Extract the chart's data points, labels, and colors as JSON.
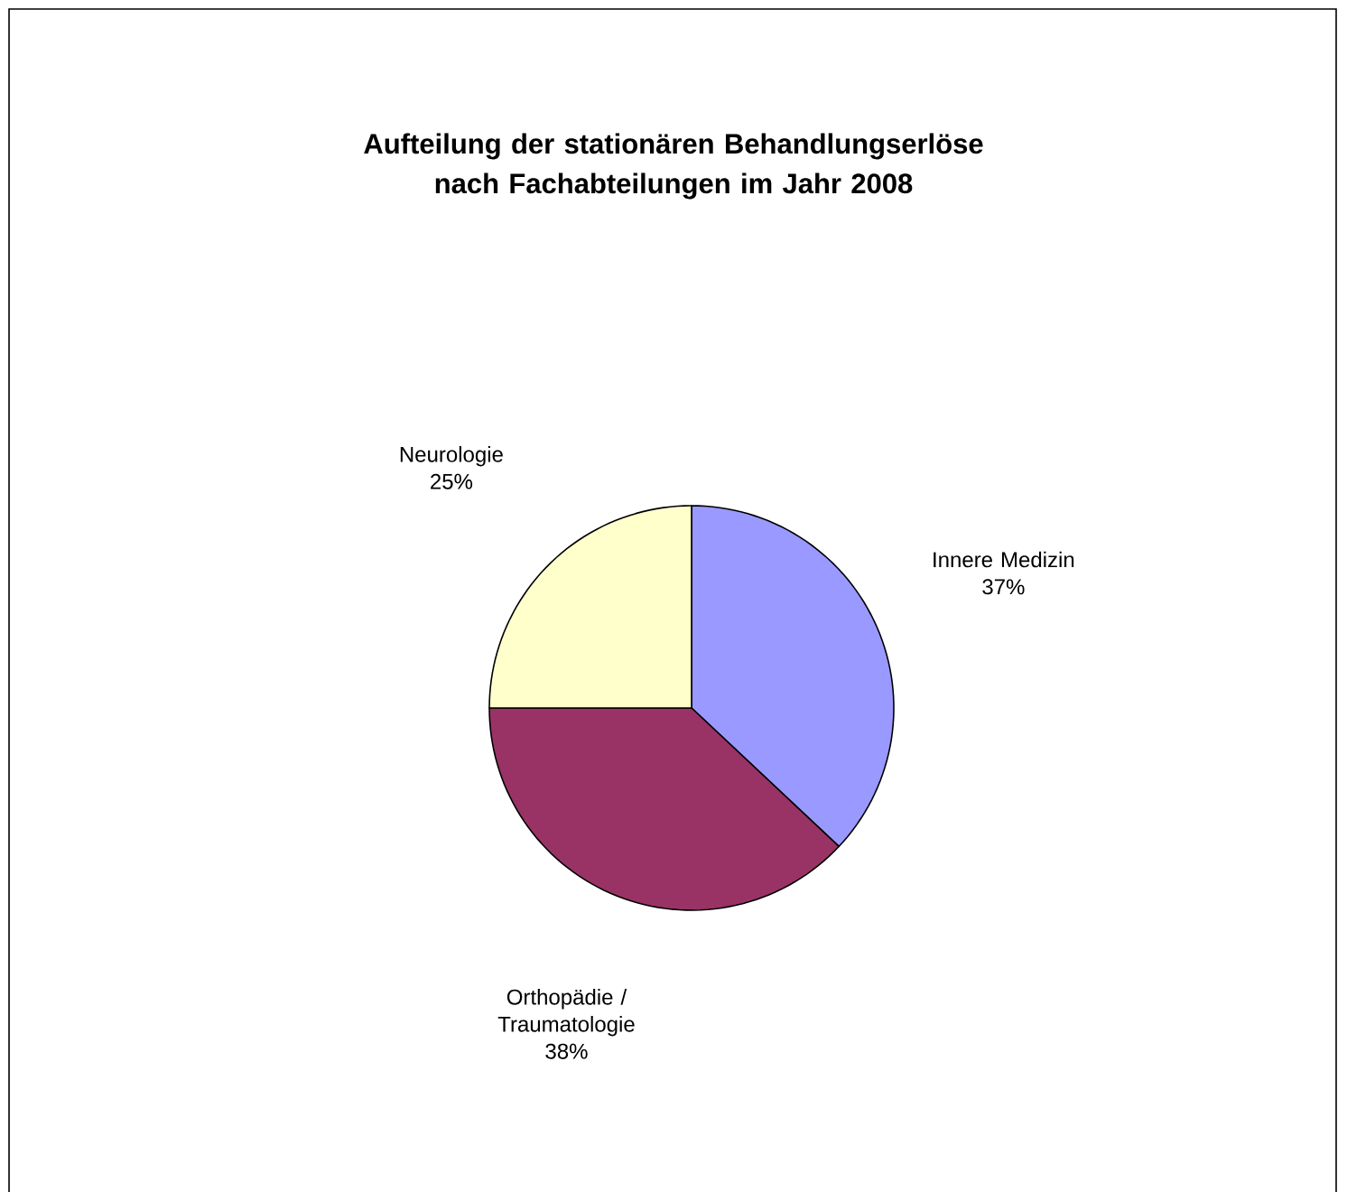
{
  "chart_data": {
    "type": "pie",
    "title": "Aufteilung der stationären Behandlungserlöse nach Fachabteilungen im Jahr 2008",
    "categories": [
      "Innere Medizin",
      "Orthopädie / Traumatologie",
      "Neurologie"
    ],
    "values": [
      37,
      38,
      25
    ],
    "value_labels": [
      "37%",
      "38%",
      "25%"
    ],
    "colors": [
      "#9999ff",
      "#993366",
      "#ffffcc"
    ]
  }
}
